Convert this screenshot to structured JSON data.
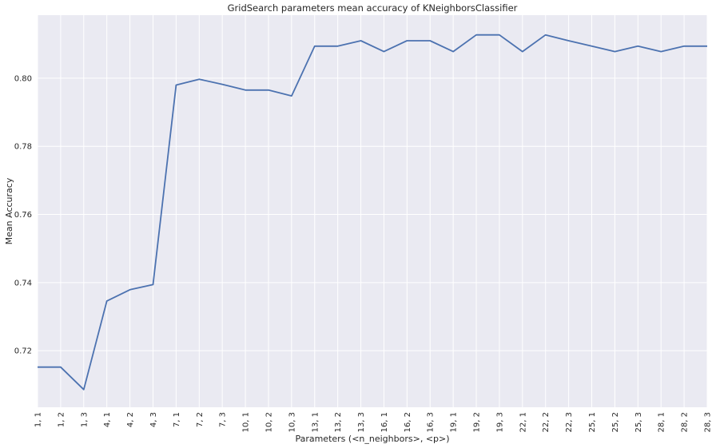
{
  "chart_data": {
    "type": "line",
    "title": "GridSearch parameters mean accuracy of KNeighborsClassifier",
    "xlabel": "Parameters (<n_neighbors>, <p>)",
    "ylabel": "Mean Accuracy",
    "ylim": [
      0.7034,
      0.8185
    ],
    "yticks": [
      0.72,
      0.74,
      0.76,
      0.78,
      0.8
    ],
    "ytick_labels": [
      "0.72",
      "0.74",
      "0.76",
      "0.78",
      "0.80"
    ],
    "categories": [
      "1, 1",
      "1, 2",
      "1, 3",
      "4, 1",
      "4, 2",
      "4, 3",
      "7, 1",
      "7, 2",
      "7, 3",
      "10, 1",
      "10, 2",
      "10, 3",
      "13, 1",
      "13, 2",
      "13, 3",
      "16, 1",
      "16, 2",
      "16, 3",
      "19, 1",
      "19, 2",
      "19, 3",
      "22, 1",
      "22, 2",
      "22, 3",
      "25, 1",
      "25, 2",
      "25, 3",
      "28, 1",
      "28, 2",
      "28, 3"
    ],
    "series": [
      {
        "values": [
          0.7152,
          0.7152,
          0.7086,
          0.7346,
          0.7379,
          0.7394,
          0.798,
          0.7997,
          0.7982,
          0.7965,
          0.7965,
          0.7948,
          0.8094,
          0.8094,
          0.811,
          0.8078,
          0.811,
          0.811,
          0.8078,
          0.8127,
          0.8127,
          0.8078,
          0.8127,
          0.811,
          0.8094,
          0.8078,
          0.8094,
          0.8078,
          0.8094,
          0.8094
        ],
        "color": "#4c72b0"
      }
    ],
    "grid": true,
    "background": "#eaeaf2",
    "grid_color": "#ffffff"
  }
}
